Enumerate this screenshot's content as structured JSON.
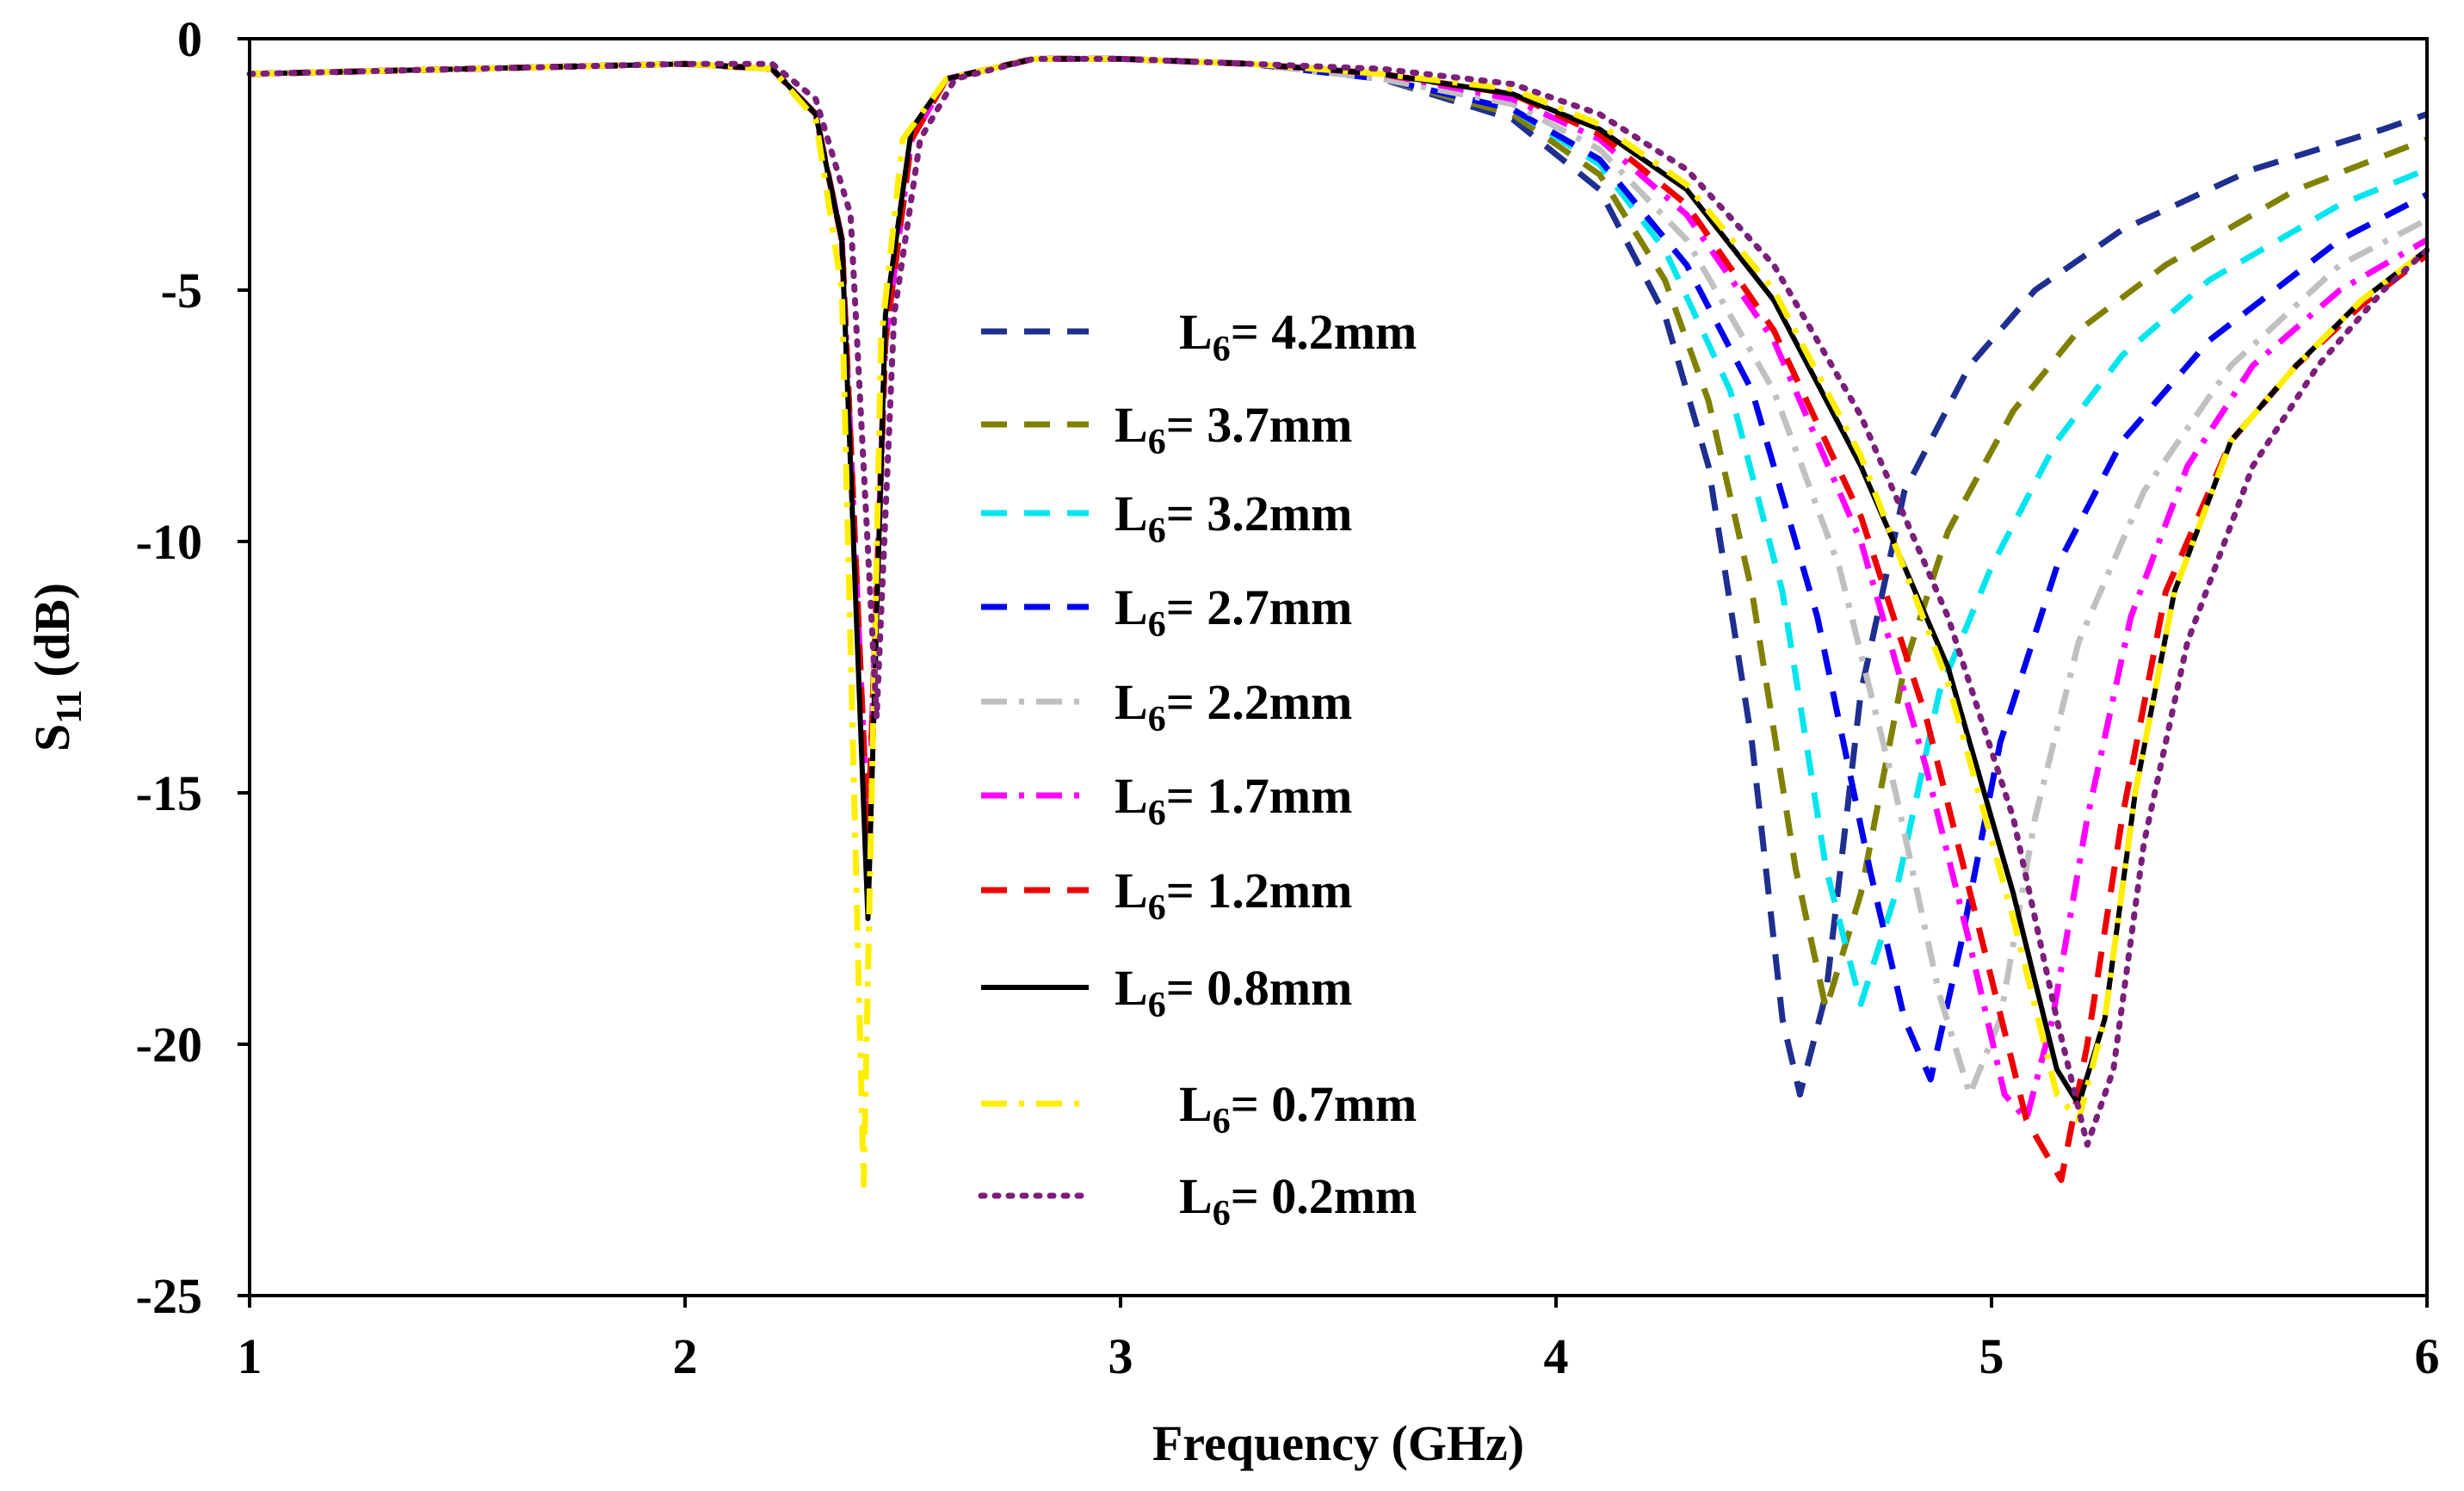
{
  "chart_data": {
    "type": "line",
    "title": "",
    "xlabel": "Frequency (GHz)",
    "ylabel": {
      "base": "S",
      "sub": "11",
      "rest": " (dB)"
    },
    "xlim": [
      1,
      6
    ],
    "ylim": [
      -25,
      0
    ],
    "xticks": [
      1,
      2,
      3,
      4,
      5,
      6
    ],
    "yticks": [
      0,
      -5,
      -10,
      -15,
      -20,
      -25
    ],
    "grid": false,
    "legend_position": "center",
    "series": [
      {
        "name": "L6= 4.2mm",
        "label_pre": "L",
        "label_sub": "6",
        "label_post": "= 4.2mm",
        "color": "#1f2f8f",
        "style": "dash",
        "x": [
          1.0,
          1.5,
          2.0,
          2.2,
          2.3,
          2.36,
          2.42,
          2.46,
          2.52,
          2.6,
          2.8,
          3.0,
          3.3,
          3.6,
          3.9,
          4.1,
          4.25,
          4.35,
          4.45,
          4.52,
          4.56,
          4.62,
          4.7,
          4.8,
          4.95,
          5.1,
          5.3,
          5.6,
          5.9,
          6.0
        ],
        "y": [
          -0.7,
          -0.6,
          -0.5,
          -0.6,
          -1.5,
          -4.0,
          -16.0,
          -6.0,
          -2.0,
          -0.8,
          -0.4,
          -0.4,
          -0.5,
          -0.8,
          -1.6,
          -3.0,
          -5.5,
          -8.5,
          -14.0,
          -19.5,
          -21.0,
          -19.0,
          -13.0,
          -9.0,
          -6.5,
          -5.0,
          -3.8,
          -2.6,
          -1.8,
          -1.5
        ]
      },
      {
        "name": "L6= 3.7mm",
        "label_pre": "L",
        "label_sub": "6",
        "label_post": "= 3.7mm",
        "color": "#808000",
        "style": "dash",
        "x": [
          1.0,
          1.5,
          2.0,
          2.2,
          2.3,
          2.36,
          2.42,
          2.46,
          2.52,
          2.6,
          2.8,
          3.0,
          3.3,
          3.6,
          3.9,
          4.1,
          4.25,
          4.35,
          4.45,
          4.55,
          4.62,
          4.7,
          4.8,
          4.9,
          5.05,
          5.2,
          5.4,
          5.7,
          6.0
        ],
        "y": [
          -0.7,
          -0.6,
          -0.5,
          -0.6,
          -1.5,
          -4.0,
          -16.0,
          -6.0,
          -2.0,
          -0.8,
          -0.4,
          -0.4,
          -0.5,
          -0.8,
          -1.5,
          -2.7,
          -4.8,
          -7.2,
          -11.0,
          -16.5,
          -19.3,
          -17.0,
          -12.5,
          -9.8,
          -7.4,
          -5.8,
          -4.5,
          -3.0,
          -2.0
        ]
      },
      {
        "name": "L6= 3.2mm",
        "label_pre": "L",
        "label_sub": "6",
        "label_post": "= 3.2mm",
        "color": "#00e5ee",
        "style": "dash",
        "x": [
          1.0,
          1.5,
          2.0,
          2.2,
          2.3,
          2.36,
          2.42,
          2.46,
          2.52,
          2.6,
          2.8,
          3.0,
          3.3,
          3.6,
          3.9,
          4.1,
          4.25,
          4.4,
          4.52,
          4.62,
          4.7,
          4.78,
          4.88,
          5.0,
          5.15,
          5.3,
          5.5,
          5.8,
          6.0
        ],
        "y": [
          -0.7,
          -0.6,
          -0.5,
          -0.6,
          -1.5,
          -4.0,
          -16.0,
          -6.0,
          -2.0,
          -0.8,
          -0.4,
          -0.4,
          -0.5,
          -0.8,
          -1.4,
          -2.5,
          -4.2,
          -7.0,
          -11.0,
          -16.5,
          -19.2,
          -17.0,
          -13.0,
          -10.5,
          -8.0,
          -6.3,
          -4.8,
          -3.3,
          -2.6
        ]
      },
      {
        "name": "L6= 2.7mm",
        "label_pre": "L",
        "label_sub": "6",
        "label_post": "= 2.7mm",
        "color": "#0000ee",
        "style": "dash",
        "x": [
          1.0,
          1.5,
          2.0,
          2.2,
          2.3,
          2.36,
          2.42,
          2.46,
          2.52,
          2.6,
          2.8,
          3.0,
          3.3,
          3.6,
          3.9,
          4.1,
          4.3,
          4.45,
          4.6,
          4.72,
          4.8,
          4.86,
          4.93,
          5.02,
          5.15,
          5.3,
          5.5,
          5.8,
          6.0
        ],
        "y": [
          -0.7,
          -0.6,
          -0.5,
          -0.6,
          -1.5,
          -4.0,
          -16.0,
          -6.0,
          -2.0,
          -0.8,
          -0.4,
          -0.4,
          -0.5,
          -0.8,
          -1.4,
          -2.4,
          -4.5,
          -7.0,
          -11.5,
          -16.5,
          -19.5,
          -20.7,
          -18.0,
          -14.0,
          -10.5,
          -8.0,
          -6.0,
          -4.0,
          -3.1
        ]
      },
      {
        "name": "L6= 2.2mm",
        "label_pre": "L",
        "label_sub": "6",
        "label_post": "= 2.2mm",
        "color": "#c0c0c0",
        "style": "dashdot",
        "x": [
          1.0,
          1.5,
          2.0,
          2.2,
          2.3,
          2.36,
          2.42,
          2.46,
          2.52,
          2.6,
          2.8,
          3.0,
          3.3,
          3.6,
          3.9,
          4.1,
          4.3,
          4.5,
          4.65,
          4.78,
          4.88,
          4.95,
          5.02,
          5.1,
          5.2,
          5.35,
          5.55,
          5.8,
          6.0
        ],
        "y": [
          -0.7,
          -0.6,
          -0.5,
          -0.6,
          -1.5,
          -4.0,
          -16.0,
          -6.0,
          -2.0,
          -0.8,
          -0.4,
          -0.4,
          -0.5,
          -0.8,
          -1.3,
          -2.2,
          -4.0,
          -7.0,
          -10.5,
          -15.0,
          -19.0,
          -21.0,
          -19.5,
          -15.5,
          -12.0,
          -9.0,
          -6.5,
          -4.5,
          -3.6
        ]
      },
      {
        "name": "L6= 1.7mm",
        "label_pre": "L",
        "label_sub": "6",
        "label_post": "= 1.7mm",
        "color": "#ff00ff",
        "style": "dashdot",
        "x": [
          1.0,
          1.5,
          2.0,
          2.2,
          2.3,
          2.36,
          2.42,
          2.46,
          2.52,
          2.6,
          2.8,
          3.0,
          3.3,
          3.6,
          3.9,
          4.1,
          4.3,
          4.5,
          4.7,
          4.85,
          4.95,
          5.03,
          5.08,
          5.14,
          5.22,
          5.32,
          5.45,
          5.6,
          5.8,
          6.0
        ],
        "y": [
          -0.7,
          -0.6,
          -0.5,
          -0.6,
          -1.5,
          -4.0,
          -16.0,
          -6.0,
          -2.0,
          -0.8,
          -0.4,
          -0.4,
          -0.5,
          -0.7,
          -1.2,
          -2.0,
          -3.5,
          -6.0,
          -10.0,
          -14.5,
          -18.0,
          -21.0,
          -21.5,
          -19.5,
          -15.5,
          -11.5,
          -8.5,
          -6.5,
          -5.0,
          -4.0
        ]
      },
      {
        "name": "L6= 1.2mm",
        "label_pre": "L",
        "label_sub": "6",
        "label_post": "= 1.2mm",
        "color": "#ee0000",
        "style": "dash",
        "x": [
          1.0,
          1.5,
          2.0,
          2.2,
          2.3,
          2.36,
          2.42,
          2.46,
          2.52,
          2.6,
          2.8,
          3.0,
          3.3,
          3.6,
          3.9,
          4.1,
          4.3,
          4.5,
          4.7,
          4.85,
          4.98,
          5.08,
          5.16,
          5.22,
          5.3,
          5.4,
          5.55,
          5.7,
          5.85,
          6.0
        ],
        "y": [
          -0.7,
          -0.6,
          -0.5,
          -0.6,
          -1.5,
          -4.0,
          -16.0,
          -6.0,
          -2.0,
          -0.8,
          -0.4,
          -0.4,
          -0.5,
          -0.7,
          -1.1,
          -1.9,
          -3.3,
          -5.8,
          -9.5,
          -13.5,
          -18.0,
          -21.5,
          -22.7,
          -20.0,
          -15.5,
          -11.0,
          -8.0,
          -6.5,
          -5.3,
          -4.3
        ]
      },
      {
        "name": "L6= 0.8mm",
        "label_pre": "L",
        "label_sub": "6",
        "label_post": "= 0.8mm",
        "color": "#000000",
        "style": "solid",
        "x": [
          1.0,
          1.5,
          2.0,
          2.2,
          2.3,
          2.36,
          2.42,
          2.46,
          2.52,
          2.6,
          2.8,
          3.0,
          3.3,
          3.6,
          3.9,
          4.1,
          4.3,
          4.5,
          4.7,
          4.9,
          5.05,
          5.15,
          5.2,
          5.26,
          5.33,
          5.42,
          5.55,
          5.7,
          5.85,
          6.0
        ],
        "y": [
          -0.7,
          -0.6,
          -0.5,
          -0.6,
          -1.5,
          -4.0,
          -17.5,
          -5.5,
          -1.8,
          -0.8,
          -0.4,
          -0.4,
          -0.5,
          -0.7,
          -1.1,
          -1.8,
          -3.0,
          -5.2,
          -8.5,
          -12.5,
          -17.0,
          -20.5,
          -21.2,
          -19.5,
          -15.0,
          -11.0,
          -8.0,
          -6.5,
          -5.2,
          -4.2
        ]
      },
      {
        "name": "L6= 0.7mm",
        "label_pre": "L",
        "label_sub": "6",
        "label_post": "= 0.7mm",
        "color": "#ffee00",
        "style": "dashdot",
        "x": [
          1.0,
          1.5,
          2.0,
          2.2,
          2.3,
          2.36,
          2.41,
          2.45,
          2.5,
          2.6,
          2.8,
          3.0,
          3.3,
          3.6,
          3.9,
          4.1,
          4.3,
          4.5,
          4.7,
          4.9,
          5.05,
          5.15,
          5.2,
          5.26,
          5.33,
          5.42,
          5.55,
          5.7,
          5.85,
          6.0
        ],
        "y": [
          -0.7,
          -0.6,
          -0.5,
          -0.6,
          -1.6,
          -5.0,
          -22.8,
          -6.0,
          -2.0,
          -0.8,
          -0.4,
          -0.4,
          -0.5,
          -0.7,
          -1.0,
          -1.7,
          -2.9,
          -5.0,
          -8.3,
          -12.8,
          -17.5,
          -21.0,
          -21.5,
          -19.5,
          -15.0,
          -11.0,
          -8.0,
          -6.5,
          -5.2,
          -4.2
        ]
      },
      {
        "name": "L6= 0.2mm",
        "label_pre": "L",
        "label_sub": "6",
        "label_post": "= 0.2mm",
        "color": "#7b1f7b",
        "style": "dot",
        "x": [
          1.0,
          1.5,
          2.0,
          2.2,
          2.3,
          2.38,
          2.44,
          2.48,
          2.54,
          2.62,
          2.8,
          3.0,
          3.3,
          3.6,
          3.9,
          4.1,
          4.3,
          4.5,
          4.7,
          4.9,
          5.05,
          5.15,
          5.22,
          5.28,
          5.35,
          5.45,
          5.6,
          5.75,
          5.9,
          6.0
        ],
        "y": [
          -0.7,
          -0.6,
          -0.5,
          -0.5,
          -1.2,
          -3.5,
          -13.5,
          -5.5,
          -2.0,
          -0.8,
          -0.4,
          -0.4,
          -0.5,
          -0.6,
          -0.9,
          -1.5,
          -2.6,
          -4.5,
          -7.5,
          -11.5,
          -15.5,
          -19.5,
          -22.0,
          -20.5,
          -16.0,
          -12.0,
          -8.5,
          -6.5,
          -5.0,
          -4.2
        ]
      }
    ]
  }
}
